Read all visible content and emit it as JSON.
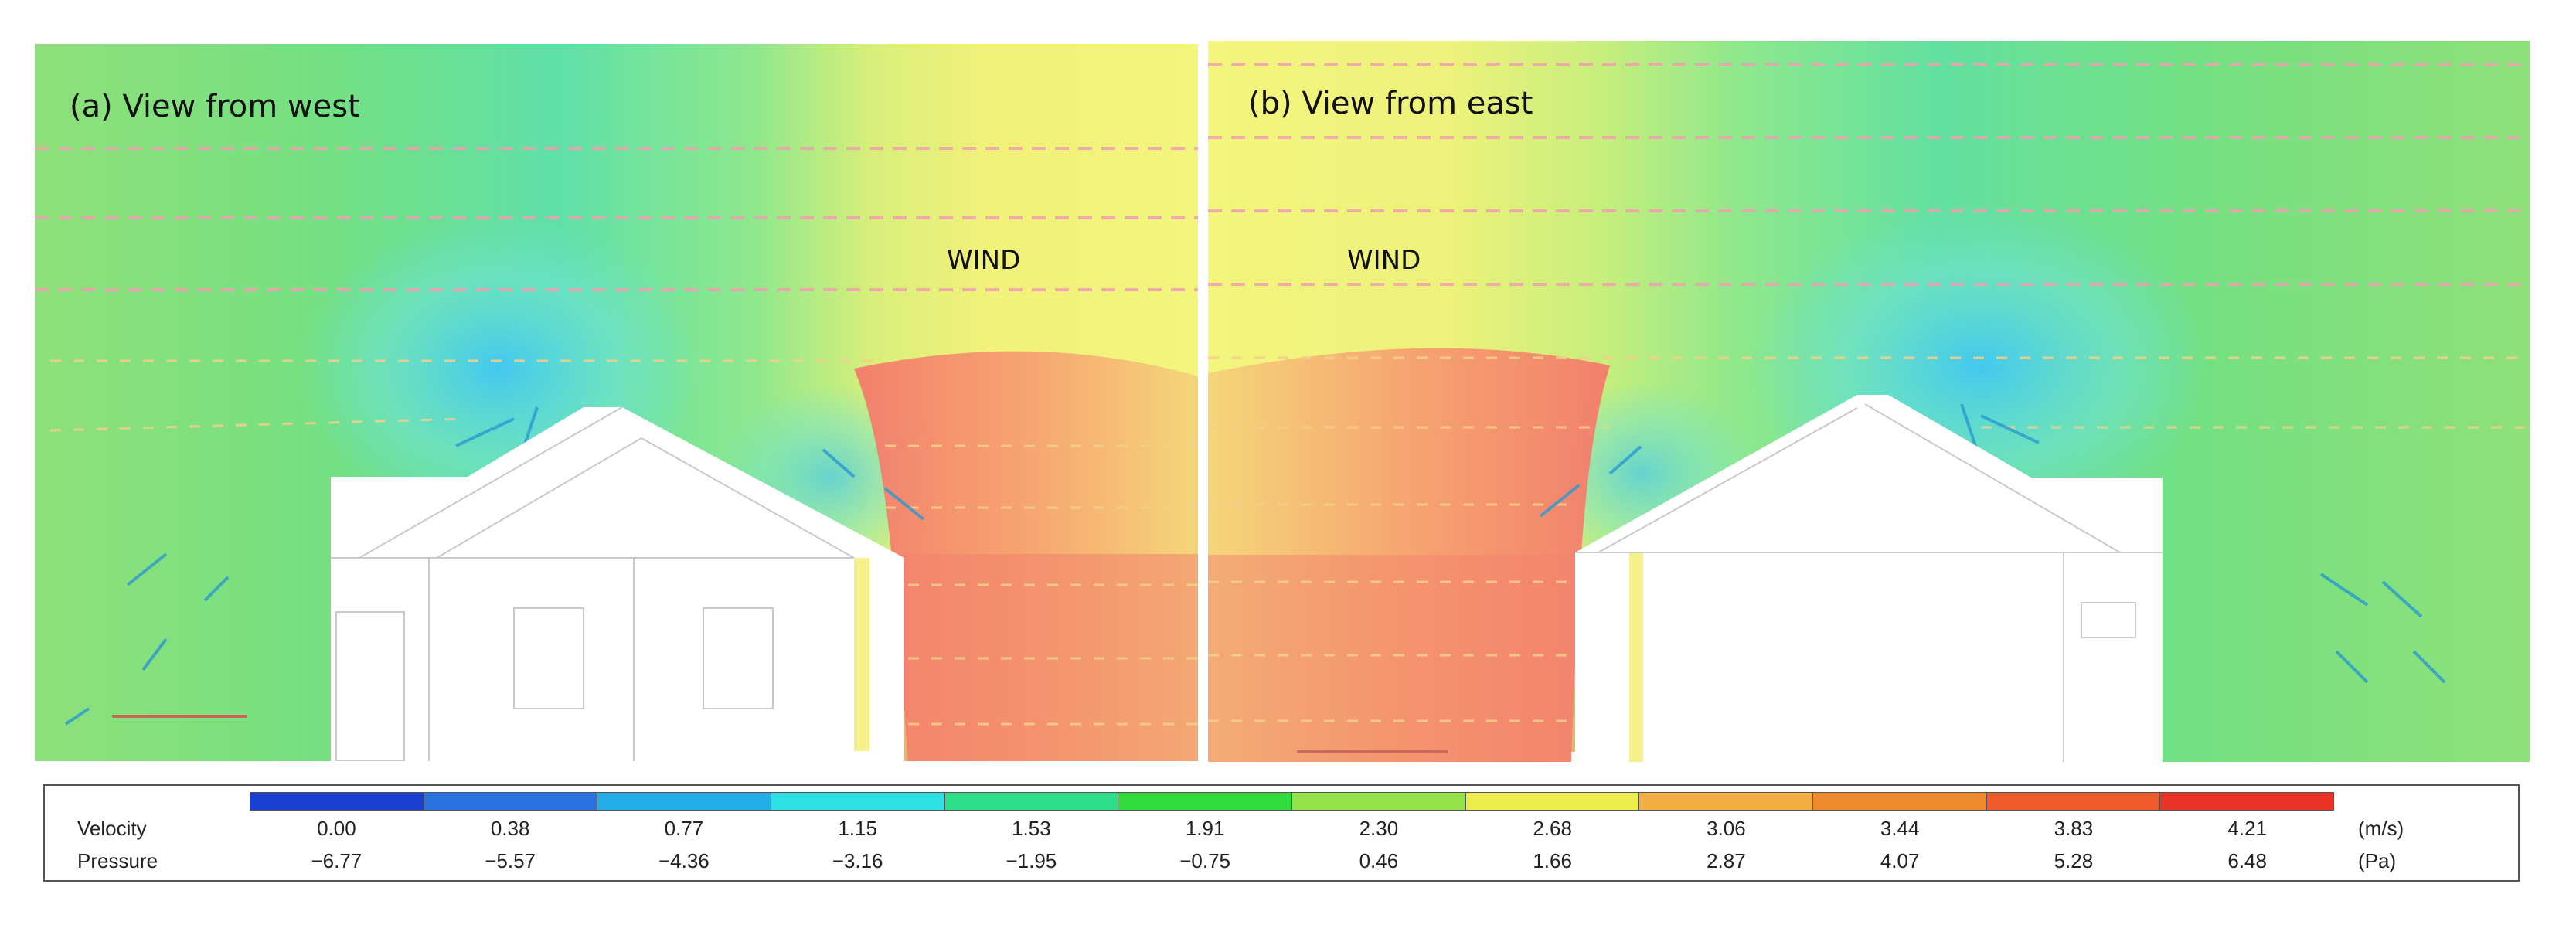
{
  "panels": [
    {
      "title": "(a) View from west",
      "wind_label": "WIND"
    },
    {
      "title": "(b) View from east",
      "wind_label": "WIND"
    }
  ],
  "legend": {
    "velocity_label": "Velocity",
    "pressure_label": "Pressure",
    "velocity_unit": "(m/s)",
    "pressure_unit": "(Pa)",
    "velocity_values": [
      "0.00",
      "0.38",
      "0.77",
      "1.15",
      "1.53",
      "1.91",
      "2.30",
      "2.68",
      "3.06",
      "3.44",
      "3.83",
      "4.21"
    ],
    "pressure_values": [
      "−6.77",
      "−5.57",
      "−4.36",
      "−3.16",
      "−1.95",
      "−0.75",
      "0.46",
      "1.66",
      "2.87",
      "4.07",
      "5.28",
      "6.48"
    ],
    "colors": [
      "#1a3fd0",
      "#2a72e0",
      "#21aee8",
      "#2de0e4",
      "#2ce08a",
      "#2fdc3c",
      "#93e24a",
      "#ecec4a",
      "#f4ae42",
      "#f08a2e",
      "#ee5a2c",
      "#e83226"
    ]
  }
}
